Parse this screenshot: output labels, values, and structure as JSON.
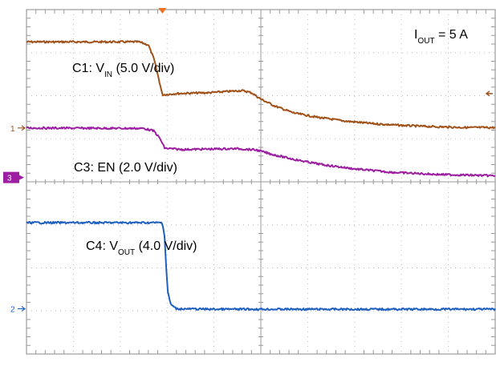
{
  "chart_data": {
    "type": "line",
    "title": "",
    "xlabel": "",
    "ylabel": "",
    "grid": true,
    "x_divisions": 10,
    "y_divisions": 8,
    "xlim": [
      0,
      10
    ],
    "ylim": [
      0,
      8
    ],
    "annotation": {
      "prefix": "I",
      "subscript": "OUT",
      "suffix": " = 5 A"
    },
    "channel_markers": [
      {
        "label": "1",
        "level": 5.25,
        "boxed": false,
        "color": "#a0521a"
      },
      {
        "label": "3",
        "level": 4.1,
        "boxed": true,
        "color": "#9b1fa0"
      },
      {
        "label": "2",
        "level": 1.05,
        "boxed": false,
        "color": "#1f5fbf"
      }
    ],
    "trigger_level": 6.05,
    "trigger_color": "#a0521a",
    "trigger_time": 2.9,
    "series": [
      {
        "name_prefix": "C1: V",
        "name_subscript": "IN",
        "name_suffix": " (5.0 V/div)",
        "color": "#a0521a",
        "points": [
          [
            0,
            7.25
          ],
          [
            2.4,
            7.25
          ],
          [
            2.6,
            7.18
          ],
          [
            2.72,
            6.85
          ],
          [
            2.82,
            6.4
          ],
          [
            2.9,
            6.02
          ],
          [
            3.2,
            6.05
          ],
          [
            3.9,
            6.07
          ],
          [
            4.6,
            6.12
          ],
          [
            4.8,
            6.07
          ],
          [
            5.0,
            5.92
          ],
          [
            5.3,
            5.76
          ],
          [
            5.7,
            5.6
          ],
          [
            6.2,
            5.5
          ],
          [
            6.8,
            5.41
          ],
          [
            7.4,
            5.35
          ],
          [
            8.0,
            5.31
          ],
          [
            8.7,
            5.28
          ],
          [
            9.4,
            5.26
          ],
          [
            10,
            5.26
          ]
        ]
      },
      {
        "name_prefix": "C3: EN",
        "name_subscript": "",
        "name_suffix": " (2.0 V/div)",
        "color": "#9b1fa0",
        "points": [
          [
            0,
            5.25
          ],
          [
            2.5,
            5.24
          ],
          [
            2.72,
            5.18
          ],
          [
            2.85,
            5.0
          ],
          [
            2.95,
            4.78
          ],
          [
            3.3,
            4.75
          ],
          [
            4.5,
            4.77
          ],
          [
            4.9,
            4.74
          ],
          [
            5.3,
            4.62
          ],
          [
            5.8,
            4.5
          ],
          [
            6.3,
            4.4
          ],
          [
            7.0,
            4.3
          ],
          [
            7.8,
            4.22
          ],
          [
            8.8,
            4.17
          ],
          [
            10,
            4.14
          ]
        ]
      },
      {
        "name_prefix": "C4: V",
        "name_subscript": "OUT",
        "name_suffix": " (4.0 V/div)",
        "color": "#1f5fbf",
        "points": [
          [
            0,
            3.05
          ],
          [
            2.9,
            3.05
          ],
          [
            2.95,
            2.7
          ],
          [
            2.98,
            2.0
          ],
          [
            3.02,
            1.4
          ],
          [
            3.08,
            1.15
          ],
          [
            3.2,
            1.05
          ],
          [
            4.0,
            1.04
          ],
          [
            10,
            1.04
          ]
        ]
      }
    ]
  }
}
